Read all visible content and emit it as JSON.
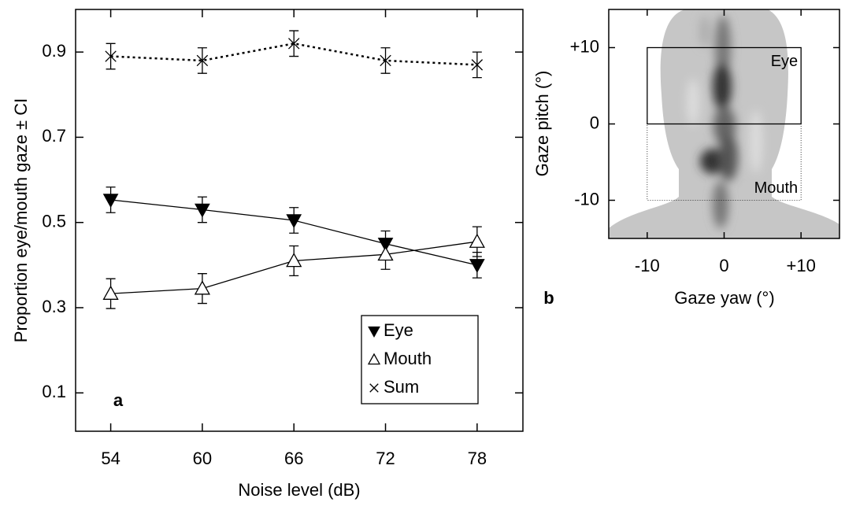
{
  "chart_data": [
    {
      "type": "line",
      "ylabel": "Proportion eye/mouth gaze ± CI",
      "xlabel": "Noise level (dB)",
      "panel_label": "a",
      "x": [
        54,
        60,
        66,
        72,
        78
      ],
      "xlim": [
        51.7,
        81
      ],
      "xticks": [
        54,
        60,
        66,
        72,
        78
      ],
      "ylim": [
        0.01,
        1.0
      ],
      "yticks": [
        0.1,
        0.3,
        0.5,
        0.7,
        0.9
      ],
      "legend": "lower right",
      "series": [
        {
          "name": "Eye",
          "color": "#000000",
          "marker": "triangle-down-filled",
          "linestyle": "solid",
          "values": [
            0.553,
            0.53,
            0.505,
            0.45,
            0.4
          ],
          "errors": [
            0.03,
            0.03,
            0.03,
            0.03,
            0.03
          ]
        },
        {
          "name": "Mouth",
          "color": "#000000",
          "marker": "triangle-up-open",
          "linestyle": "solid",
          "values": [
            0.333,
            0.345,
            0.41,
            0.425,
            0.455
          ],
          "errors": [
            0.035,
            0.035,
            0.035,
            0.035,
            0.035
          ]
        },
        {
          "name": "Sum",
          "color": "#000000",
          "marker": "x",
          "linestyle": "dotted",
          "values": [
            0.89,
            0.88,
            0.92,
            0.88,
            0.87
          ],
          "errors": [
            0.03,
            0.03,
            0.03,
            0.03,
            0.03
          ]
        }
      ]
    },
    {
      "type": "density",
      "xlabel": "Gaze yaw (°)",
      "ylabel": "Gaze pitch (°)",
      "panel_label": "b",
      "xlim": [
        -15,
        15
      ],
      "xticks": [
        -10,
        0,
        {
          "value": 10,
          "label": "+10"
        }
      ],
      "ylim": [
        -15,
        15
      ],
      "yticks": [
        -10,
        0,
        {
          "value": 10,
          "label": "+10"
        }
      ],
      "regions": [
        {
          "label": "Eye",
          "x": [
            -10,
            10
          ],
          "y": [
            0,
            10
          ],
          "linestyle": "solid"
        },
        {
          "label": "Mouth",
          "x": [
            -10,
            10
          ],
          "y": [
            -10,
            0
          ],
          "linestyle": "dotted"
        }
      ]
    }
  ]
}
